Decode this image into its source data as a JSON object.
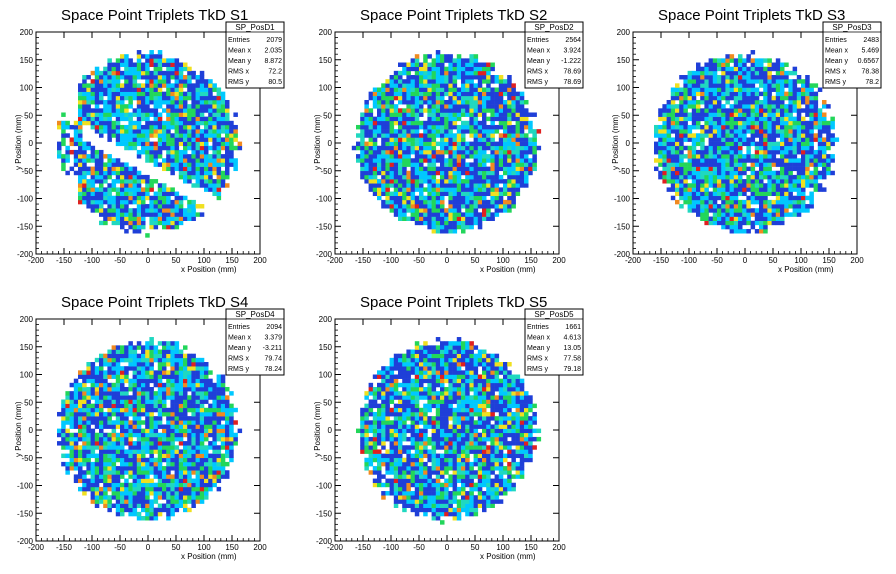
{
  "palette": {
    "blue": "#1f3fd8",
    "cyan": "#00c8ff",
    "teal": "#20d8c0",
    "green": "#22d65a",
    "yellow": "#f0e020",
    "orange": "#f08a20",
    "red": "#e02020"
  },
  "chart_data": [
    {
      "type": "heatmap",
      "title": "Space Point Triplets TkD S1",
      "xlabel": "x Position (mm)",
      "ylabel": "y Position (mm)",
      "xlim": [
        -200,
        200
      ],
      "ylim": [
        -200,
        200
      ],
      "xticks": [
        "-200",
        "-150",
        "-100",
        "-50",
        "0",
        "50",
        "100",
        "150",
        "200"
      ],
      "yticks": [
        "-200",
        "-150",
        "-100",
        "-50",
        "0",
        "50",
        "100",
        "150",
        "200"
      ],
      "stats": {
        "name": "SP_PosD1",
        "rows": [
          [
            "Entries",
            "2079"
          ],
          [
            "Mean x",
            "2.035"
          ],
          [
            "Mean y",
            "8.872"
          ],
          [
            "RMS x",
            "72.2"
          ],
          [
            "RMS y",
            "80.5"
          ]
        ]
      },
      "occupied_radius_mm": 160,
      "gap": true,
      "seed": 11
    },
    {
      "type": "heatmap",
      "title": "Space Point Triplets TkD S2",
      "xlabel": "x Position (mm)",
      "ylabel": "y Position (mm)",
      "xlim": [
        -200,
        200
      ],
      "ylim": [
        -200,
        200
      ],
      "xticks": [
        "-200",
        "-150",
        "-100",
        "-50",
        "0",
        "50",
        "100",
        "150",
        "200"
      ],
      "yticks": [
        "-200",
        "-150",
        "-100",
        "-50",
        "0",
        "50",
        "100",
        "150",
        "200"
      ],
      "stats": {
        "name": "SP_PosD2",
        "rows": [
          [
            "Entries",
            "2564"
          ],
          [
            "Mean x",
            "3.924"
          ],
          [
            "Mean y",
            "-1.222"
          ],
          [
            "RMS x",
            "78.69"
          ],
          [
            "RMS y",
            "78.69"
          ]
        ]
      },
      "occupied_radius_mm": 160,
      "gap": false,
      "seed": 23
    },
    {
      "type": "heatmap",
      "title": "Space Point Triplets TkD S3",
      "xlabel": "x Position (mm)",
      "ylabel": "y Position (mm)",
      "xlim": [
        -200,
        200
      ],
      "ylim": [
        -200,
        200
      ],
      "xticks": [
        "-200",
        "-150",
        "-100",
        "-50",
        "0",
        "50",
        "100",
        "150",
        "200"
      ],
      "yticks": [
        "-200",
        "-150",
        "-100",
        "-50",
        "0",
        "50",
        "100",
        "150",
        "200"
      ],
      "stats": {
        "name": "SP_PosD3",
        "rows": [
          [
            "Entries",
            "2483"
          ],
          [
            "Mean x",
            "5.469"
          ],
          [
            "Mean y",
            "0.6567"
          ],
          [
            "RMS x",
            "78.38"
          ],
          [
            "RMS y",
            "78.2"
          ]
        ]
      },
      "occupied_radius_mm": 160,
      "gap": false,
      "seed": 37
    },
    {
      "type": "heatmap",
      "title": "Space Point Triplets TkD S4",
      "xlabel": "x Position (mm)",
      "ylabel": "y Position (mm)",
      "xlim": [
        -200,
        200
      ],
      "ylim": [
        -200,
        200
      ],
      "xticks": [
        "-200",
        "-150",
        "-100",
        "-50",
        "0",
        "50",
        "100",
        "150",
        "200"
      ],
      "yticks": [
        "-200",
        "-150",
        "-100",
        "-50",
        "0",
        "50",
        "100",
        "150",
        "200"
      ],
      "stats": {
        "name": "SP_PosD4",
        "rows": [
          [
            "Entries",
            "2094"
          ],
          [
            "Mean x",
            "3.379"
          ],
          [
            "Mean y",
            "-3.211"
          ],
          [
            "RMS x",
            "79.74"
          ],
          [
            "RMS y",
            "78.24"
          ]
        ]
      },
      "occupied_radius_mm": 160,
      "gap": false,
      "seed": 51
    },
    {
      "type": "heatmap",
      "title": "Space Point Triplets TkD S5",
      "xlabel": "x Position (mm)",
      "ylabel": "y Position (mm)",
      "xlim": [
        -200,
        200
      ],
      "ylim": [
        -200,
        200
      ],
      "xticks": [
        "-200",
        "-150",
        "-100",
        "-50",
        "0",
        "50",
        "100",
        "150",
        "200"
      ],
      "yticks": [
        "-200",
        "-150",
        "-100",
        "-50",
        "0",
        "50",
        "100",
        "150",
        "200"
      ],
      "stats": {
        "name": "SP_PosD5",
        "rows": [
          [
            "Entries",
            "1661"
          ],
          [
            "Mean x",
            "4.613"
          ],
          [
            "Mean y",
            "13.05"
          ],
          [
            "RMS x",
            "77.58"
          ],
          [
            "RMS y",
            "79.18"
          ]
        ]
      },
      "occupied_radius_mm": 160,
      "gap": false,
      "seed": 67
    }
  ]
}
